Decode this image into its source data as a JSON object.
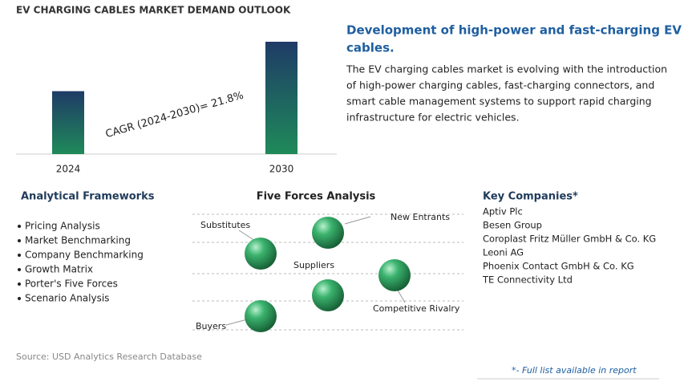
{
  "chart_data": {
    "type": "bar",
    "title": "EV CHARGING CABLES MARKET DEMAND OUTLOOK",
    "categories": [
      "2024",
      "2030"
    ],
    "values": [
      56,
      100
    ],
    "ylim": [
      0,
      100
    ],
    "annotation": "CAGR (2024-2030)=   21.8%"
  },
  "highlight": {
    "title": [
      "Development of high-power and fast-charging EV",
      "cables."
    ],
    "text": [
      "The EV charging cables market is evolving with the introduction",
      "of high-power charging cables, fast-charging connectors, and",
      "smart cable management systems to support rapid charging",
      "infrastructure for electric vehicles."
    ]
  },
  "frameworks": {
    "title": "Analytical Frameworks",
    "items": [
      "Pricing Analysis",
      "Market Benchmarking",
      "Company Benchmarking",
      "Growth Matrix",
      "Porter's Five Forces",
      "Scenario Analysis"
    ]
  },
  "five_forces": {
    "title": "Five Forces Analysis",
    "labels": [
      "Substitutes",
      "New Entrants",
      "Suppliers",
      "Competitive Rivalry",
      "Buyers"
    ]
  },
  "companies": {
    "title": "Key Companies*",
    "items": [
      "Aptiv Plc",
      "Besen Group",
      "Coroplast Fritz Müller GmbH & Co. KG",
      "Leoni AG",
      "Phoenix Contact GmbH & Co. KG",
      "TE Connectivity Ltd"
    ]
  },
  "source": "Source: USD Analytics Research Database",
  "footnote": "*- Full list available in report"
}
